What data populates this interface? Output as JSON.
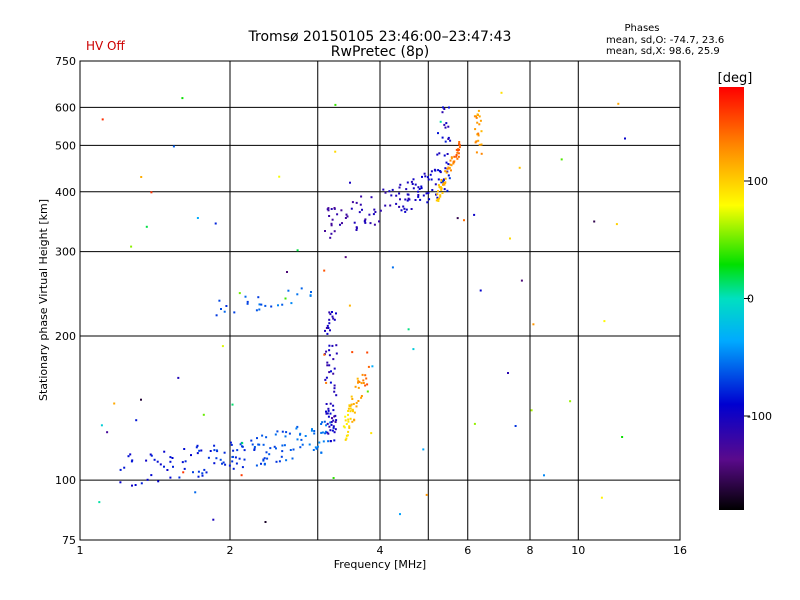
{
  "title_line1": "Tromsø 20150105 23:46:00–23:47:43",
  "title_line2": "RwPretec (8p)",
  "status": "HV Off",
  "stats": {
    "heading": "Phases",
    "line_o": "mean, sd,O: -74.7, 23.6",
    "line_x": "mean, sd,X:  98.6, 25.9"
  },
  "colorbar": {
    "label": "[deg]",
    "range": [
      -180,
      180
    ],
    "ticks": [
      100,
      0,
      -100
    ],
    "tick_labels": [
      "100",
      "0",
      "-100"
    ]
  },
  "chart_data": {
    "type": "scatter",
    "xlabel": "Frequency [MHz]",
    "ylabel": "Stationary phase Virtual Height [km]",
    "xscale": "log",
    "yscale": "log",
    "xlim": [
      1,
      16
    ],
    "ylim": [
      75,
      750
    ],
    "xticks": [
      1,
      2,
      4,
      6,
      8,
      10,
      16
    ],
    "xtick_labels": [
      "1",
      "2",
      "4",
      "6",
      "8",
      "10",
      "16"
    ],
    "xgrid": [
      1,
      2,
      3,
      4,
      5,
      6,
      8,
      10,
      16
    ],
    "yticks": [
      75,
      100,
      200,
      300,
      400,
      500,
      600,
      750
    ],
    "ytick_labels": [
      "75",
      "100",
      "200",
      "300",
      "400",
      "500",
      "600",
      "750"
    ],
    "ygrid": [
      100,
      200,
      300,
      400,
      500,
      600
    ],
    "color_by": "phase [deg]",
    "clusters": [
      {
        "name": "E-layer O trace",
        "x0": 1.2,
        "x1": 3.2,
        "h0": 105,
        "h1": 125,
        "ph0": -90,
        "ph1": -50,
        "n": 150,
        "spread": 0.02
      },
      {
        "name": "F1 trace",
        "x0": 1.8,
        "x1": 2.95,
        "h0": 228,
        "h1": 245,
        "ph0": -70,
        "ph1": -50,
        "n": 24,
        "spread": 0.01
      },
      {
        "name": "F-cusp vertical",
        "x0": 3.1,
        "x1": 3.28,
        "h0": 120,
        "h1": 230,
        "ph0": -120,
        "ph1": -90,
        "n": 70,
        "spread": 0.01
      },
      {
        "name": "E-layer X trace",
        "x0": 3.3,
        "x1": 3.8,
        "h0": 120,
        "h1": 175,
        "ph0": 70,
        "ph1": 150,
        "n": 55,
        "spread": 0.02
      },
      {
        "name": "F2 O trace",
        "x0": 3.1,
        "x1": 5.3,
        "h0": 345,
        "h1": 420,
        "ph0": -120,
        "ph1": -95,
        "n": 110,
        "spread": 0.02
      },
      {
        "name": "F2 O cusp",
        "x0": 5.2,
        "x1": 5.55,
        "h0": 400,
        "h1": 600,
        "ph0": -110,
        "ph1": -80,
        "n": 30,
        "spread": 0.01
      },
      {
        "name": "F2 X trace",
        "x0": 5.2,
        "x1": 5.8,
        "h0": 390,
        "h1": 500,
        "ph0": 100,
        "ph1": 150,
        "n": 55,
        "spread": 0.01
      },
      {
        "name": "F2 X cusp",
        "x0": 6.2,
        "x1": 6.4,
        "h0": 470,
        "h1": 600,
        "ph0": 110,
        "ph1": 130,
        "n": 22,
        "spread": 0.01
      },
      {
        "name": "noise",
        "x0": 1.05,
        "x1": 13.0,
        "h0": 76,
        "h1": 650,
        "ph0": -170,
        "ph1": 170,
        "n": 75,
        "spread": 0
      }
    ]
  }
}
